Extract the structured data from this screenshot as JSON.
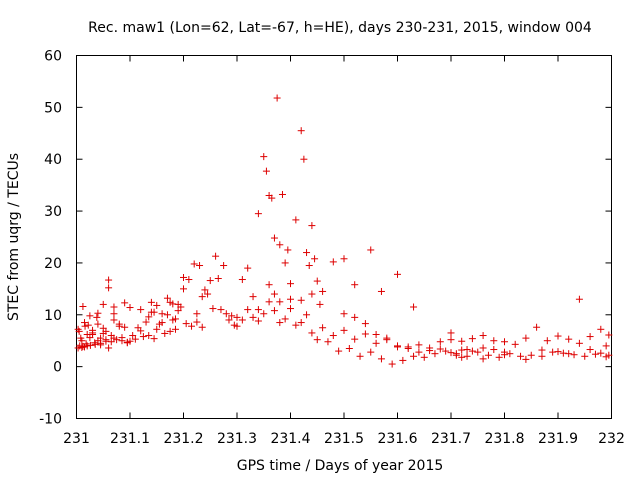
{
  "chart_data": {
    "type": "scatter",
    "title": "Rec. maw1 (Lon=62, Lat=-67, h=HE), days 230-231, 2015, window 004",
    "xlabel": "GPS time / Days of year 2015",
    "ylabel": "STEC from uqrg / TECUs",
    "xlim": [
      231,
      232
    ],
    "ylim": [
      -10,
      60
    ],
    "xticks": [
      231,
      231.1,
      231.2,
      231.3,
      231.4,
      231.5,
      231.6,
      231.7,
      231.8,
      231.9,
      232
    ],
    "xtick_labels": [
      "231",
      "231.1",
      "231.2",
      "231.3",
      "231.4",
      "231.5",
      "231.6",
      "231.7",
      "231.8",
      "231.9",
      "232"
    ],
    "yticks": [
      -10,
      0,
      10,
      20,
      30,
      40,
      50,
      60
    ],
    "ytick_labels": [
      "-10",
      "0",
      "10",
      "20",
      "30",
      "40",
      "50",
      "60"
    ],
    "grid": false,
    "marker": "+",
    "color": "#dd0000",
    "x": [
      231.003,
      231.003,
      231.006,
      231.008,
      231.012,
      231.012,
      231.016,
      231.018,
      231.022,
      231.026,
      231.03,
      231.034,
      231.038,
      231.04,
      231.045,
      231.05,
      231.055,
      231.06,
      231.065,
      231.07,
      231.005,
      231.01,
      231.015,
      231.02,
      231.025,
      231.03,
      231.035,
      231.04,
      231.045,
      231.05,
      231.055,
      231.06,
      231.065,
      231.07,
      231.075,
      231.08,
      231.085,
      231.09,
      231.095,
      231.1,
      231.01,
      231.02,
      231.03,
      231.04,
      231.05,
      231.06,
      231.07,
      231.08,
      231.09,
      231.1,
      231.11,
      231.12,
      231.13,
      231.14,
      231.15,
      231.16,
      231.17,
      231.18,
      231.19,
      231.2,
      231.105,
      231.115,
      231.125,
      231.135,
      231.145,
      231.155,
      231.165,
      231.175,
      231.185,
      231.195,
      231.205,
      231.215,
      231.225,
      231.235,
      231.245,
      231.255,
      231.265,
      231.275,
      231.285,
      231.295,
      231.07,
      231.12,
      231.15,
      231.17,
      231.19,
      231.21,
      231.22,
      231.23,
      231.24,
      231.26,
      231.25,
      231.2,
      231.18,
      231.14,
      231.16,
      231.27,
      231.28,
      231.29,
      231.3,
      231.31,
      231.32,
      231.33,
      231.34,
      231.35,
      231.36,
      231.37,
      231.38,
      231.39,
      231.4,
      231.41,
      231.3,
      231.31,
      231.32,
      231.33,
      231.34,
      231.35,
      231.355,
      231.36,
      231.365,
      231.37,
      231.375,
      231.38,
      231.385,
      231.39,
      231.395,
      231.4,
      231.41,
      231.42,
      231.425,
      231.43,
      231.435,
      231.44,
      231.445,
      231.45,
      231.455,
      231.34,
      231.36,
      231.37,
      231.38,
      231.4,
      231.42,
      231.43,
      231.44,
      231.46,
      231.48,
      231.5,
      231.52,
      231.55,
      231.57,
      231.6,
      231.63,
      231.42,
      231.44,
      231.46,
      231.48,
      231.5,
      231.52,
      231.54,
      231.56,
      231.58,
      231.6,
      231.62,
      231.64,
      231.66,
      231.68,
      231.7,
      231.45,
      231.47,
      231.49,
      231.51,
      231.53,
      231.55,
      231.57,
      231.59,
      231.61,
      231.63,
      231.65,
      231.67,
      231.69,
      231.71,
      231.73,
      231.5,
      231.52,
      231.54,
      231.56,
      231.58,
      231.6,
      231.62,
      231.64,
      231.66,
      231.68,
      231.7,
      231.72,
      231.74,
      231.76,
      231.78,
      231.8,
      231.7,
      231.72,
      231.74,
      231.76,
      231.78,
      231.8,
      231.82,
      231.84,
      231.86,
      231.88,
      231.9,
      231.92,
      231.94,
      231.96,
      231.98,
      231.995,
      231.71,
      231.73,
      231.75,
      231.77,
      231.79,
      231.81,
      231.83,
      231.85,
      231.87,
      231.89,
      231.91,
      231.93,
      231.95,
      231.97,
      231.99,
      231.72,
      231.76,
      231.8,
      231.84,
      231.87,
      231.9,
      231.92,
      231.94,
      231.96,
      231.98,
      231.99,
      231.995,
      231.015,
      231.025,
      231.045,
      231.055,
      231.085,
      231.095,
      231.135,
      231.145,
      231.175,
      231.185,
      231.225,
      231.235
    ],
    "y": [
      3.6,
      7.2,
      4.0,
      5.5,
      11.6,
      3.9,
      7.8,
      4.4,
      8.0,
      4.1,
      6.5,
      4.6,
      9.5,
      5.0,
      4.5,
      12.0,
      5.2,
      16.7,
      4.8,
      11.5,
      6.8,
      3.7,
      8.5,
      4.0,
      9.8,
      6.2,
      4.3,
      10.3,
      5.5,
      7.4,
      4.9,
      15.2,
      6.0,
      9.0,
      5.2,
      8.2,
      5.6,
      7.6,
      4.7,
      11.4,
      5.0,
      6.2,
      7.0,
      8.2,
      6.4,
      3.6,
      5.5,
      7.8,
      12.3,
      4.9,
      5.3,
      6.9,
      8.6,
      12.4,
      7.2,
      10.2,
      13.2,
      9.0,
      10.8,
      17.2,
      6.0,
      7.5,
      5.8,
      9.6,
      10.5,
      8.2,
      6.4,
      12.4,
      9.2,
      11.5,
      8.3,
      7.8,
      10.2,
      13.5,
      14.0,
      11.2,
      17.0,
      19.5,
      9.0,
      8.0,
      10.2,
      11.0,
      11.8,
      10.0,
      12.0,
      16.8,
      19.8,
      19.5,
      14.8,
      21.3,
      16.6,
      15.0,
      12.1,
      10.5,
      8.5,
      11.0,
      10.2,
      9.8,
      9.5,
      9.0,
      11.0,
      9.5,
      8.8,
      10.2,
      12.5,
      10.8,
      8.5,
      9.2,
      11.2,
      8.0,
      7.8,
      16.8,
      19.0,
      13.5,
      29.5,
      40.5,
      37.7,
      33.0,
      32.5,
      24.8,
      51.8,
      23.5,
      33.2,
      20.0,
      22.5,
      16.0,
      28.3,
      45.5,
      40.0,
      22.0,
      19.5,
      27.2,
      20.8,
      16.5,
      12.0,
      11.0,
      15.8,
      14.0,
      12.5,
      13.0,
      12.8,
      10.0,
      14.0,
      14.5,
      20.2,
      20.8,
      15.8,
      22.5,
      14.5,
      17.8,
      11.5,
      8.5,
      6.5,
      7.5,
      6.0,
      7.0,
      5.3,
      6.3,
      4.5,
      5.2,
      3.8,
      3.5,
      4.2,
      3.6,
      4.8,
      5.2,
      5.2,
      4.8,
      3.0,
      3.5,
      2.0,
      2.8,
      1.5,
      0.5,
      1.2,
      2.0,
      1.8,
      2.5,
      3.0,
      2.2,
      3.3,
      10.2,
      9.5,
      8.3,
      6.2,
      5.5,
      4.0,
      3.8,
      2.8,
      3.1,
      3.4,
      2.7,
      3.2,
      3.0,
      3.6,
      3.3,
      2.8,
      6.5,
      4.9,
      5.4,
      6.0,
      5.0,
      4.8,
      4.3,
      5.5,
      7.6,
      5.0,
      5.9,
      5.3,
      4.5,
      5.8,
      7.2,
      6.1,
      2.5,
      2.0,
      2.8,
      2.2,
      1.8,
      2.5,
      2.0,
      2.2,
      3.2,
      2.8,
      2.6,
      2.3,
      2.0,
      2.4,
      1.9,
      1.8,
      1.5,
      2.3,
      1.4,
      2.0,
      2.9,
      2.5,
      13.0,
      3.3,
      2.6,
      4.0,
      2.2,
      3.8,
      5.6,
      4.2,
      6.8,
      5.0,
      4.6,
      6.0,
      5.4,
      6.8,
      7.2,
      8.6,
      7.6
    ]
  }
}
